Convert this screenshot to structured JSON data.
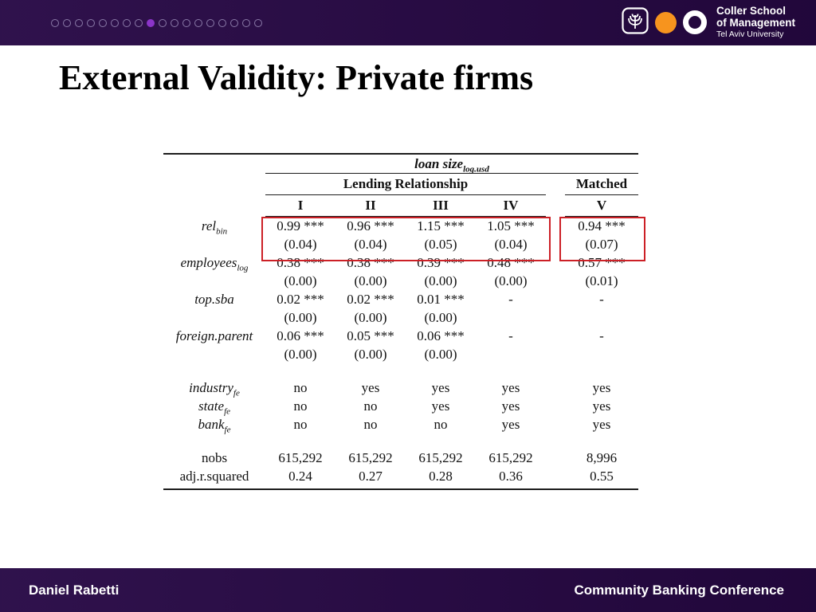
{
  "slide": {
    "title": "External Validity: Private firms",
    "footer_left": "Daniel Rabetti",
    "footer_right": "Community Banking Conference"
  },
  "progress": {
    "total_dots": 18,
    "active_index": 8
  },
  "logo": {
    "school_line1": "Coller School",
    "school_line2": "of Management",
    "university": "Tel Aviv University"
  },
  "colors": {
    "bar_background": "#270845",
    "highlight_red": "#cc2026",
    "active_dot": "#8b35c9",
    "orange_circle": "#f7941e"
  },
  "table": {
    "dependent_variable": {
      "main": "loan size",
      "sub": "log.usd"
    },
    "group_headers": [
      {
        "label": "Lending Relationship"
      },
      {
        "label": "Matched"
      }
    ],
    "column_headers": [
      "I",
      "II",
      "III",
      "IV",
      "V"
    ],
    "rows": [
      {
        "type": "coef",
        "highlighted": true,
        "label": {
          "main": "rel",
          "sub": "bin"
        },
        "values": [
          "0.99 ***",
          "0.96 ***",
          "1.15 ***",
          "1.05 ***",
          "0.94 ***"
        ],
        "se": [
          "(0.04)",
          "(0.04)",
          "(0.05)",
          "(0.04)",
          "(0.07)"
        ]
      },
      {
        "type": "coef",
        "label": {
          "main": "employees",
          "sub": "log"
        },
        "values": [
          "0.38 ***",
          "0.38 ***",
          "0.39 ***",
          "0.48 ***",
          "0.57 ***"
        ],
        "se": [
          "(0.00)",
          "(0.00)",
          "(0.00)",
          "(0.00)",
          "(0.01)"
        ]
      },
      {
        "type": "coef",
        "label": {
          "main": "top.sba",
          "sub": ""
        },
        "values": [
          "0.02 ***",
          "0.02 ***",
          "0.01 ***",
          "-",
          "-"
        ],
        "se": [
          "(0.00)",
          "(0.00)",
          "(0.00)",
          "",
          ""
        ]
      },
      {
        "type": "coef",
        "label": {
          "main": "foreign.parent",
          "sub": ""
        },
        "values": [
          "0.06 ***",
          "0.05 ***",
          "0.06 ***",
          "-",
          "-"
        ],
        "se": [
          "(0.00)",
          "(0.00)",
          "(0.00)",
          "",
          ""
        ]
      },
      {
        "type": "fe",
        "gap": true,
        "label": {
          "main": "industry",
          "sub": "fe"
        },
        "values": [
          "no",
          "yes",
          "yes",
          "yes",
          "yes"
        ]
      },
      {
        "type": "fe",
        "label": {
          "main": "state",
          "sub": "fe"
        },
        "values": [
          "no",
          "no",
          "yes",
          "yes",
          "yes"
        ]
      },
      {
        "type": "fe",
        "label": {
          "main": "bank",
          "sub": "fe"
        },
        "values": [
          "no",
          "no",
          "no",
          "yes",
          "yes"
        ]
      },
      {
        "type": "stat",
        "gap": true,
        "label": {
          "main": "nobs",
          "sub": ""
        },
        "values": [
          "615,292",
          "615,292",
          "615,292",
          "615,292",
          "8,996"
        ]
      },
      {
        "type": "stat",
        "label": {
          "main": "adj.r.squared",
          "sub": ""
        },
        "values": [
          "0.24",
          "0.27",
          "0.28",
          "0.36",
          "0.55"
        ]
      }
    ]
  }
}
